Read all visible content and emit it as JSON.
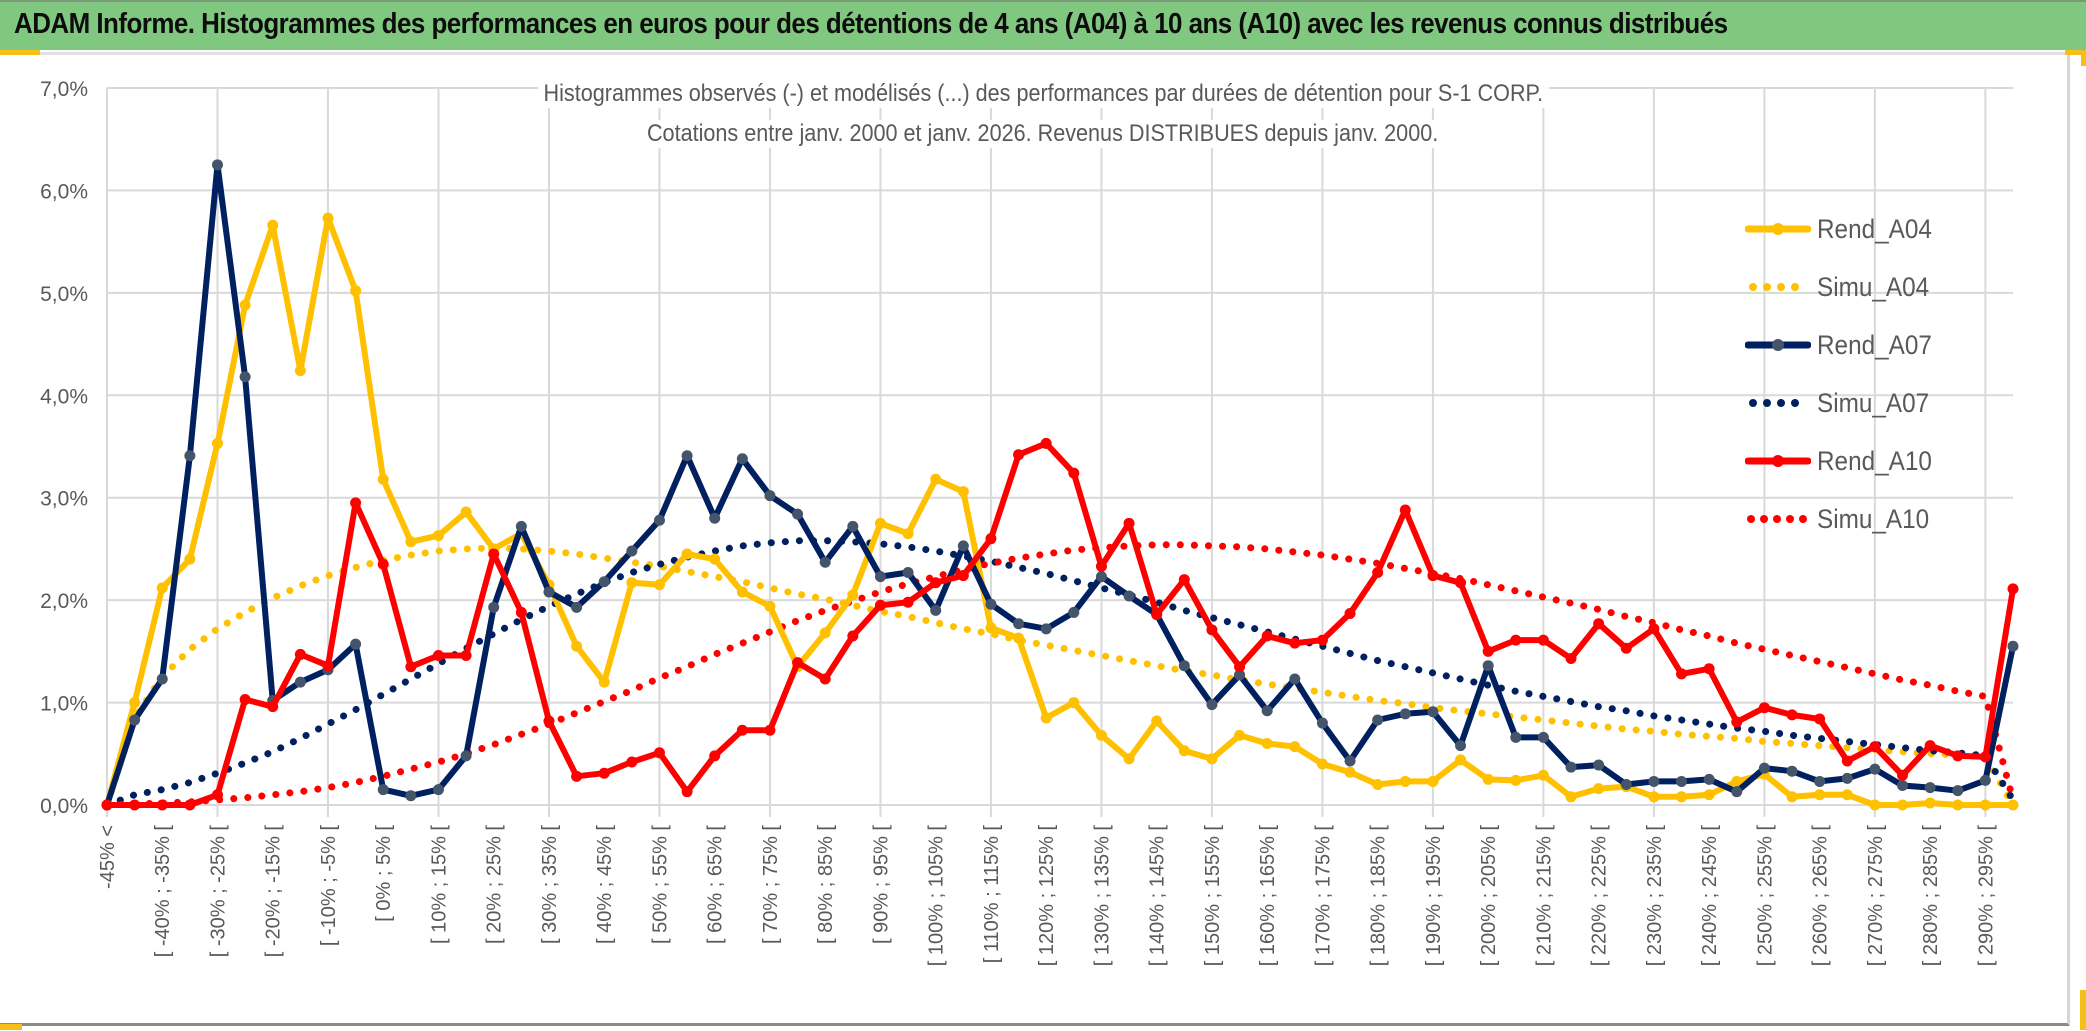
{
  "banner": {
    "title": "ADAM Informe. Histogrammes des performances en euros pour des détentions de 4 ans (A04) à 10 ans (A10) avec les revenus connus distribués"
  },
  "chart_data": {
    "type": "line",
    "title": "Histogrammes observés (-) et modélisés (...) des performances par durées de détention pour S-1 CORP.",
    "subtitle": "Cotations entre janv. 2000 et janv. 2026. Revenus DISTRIBUES depuis janv. 2000.",
    "xlabel": "",
    "ylabel": "",
    "ylim": [
      0,
      7
    ],
    "y_unit": "%",
    "y_ticks": [
      "0,0%",
      "1,0%",
      "2,0%",
      "3,0%",
      "4,0%",
      "5,0%",
      "6,0%",
      "7,0%"
    ],
    "grid": true,
    "legend_position": "right",
    "categories": [
      "-45% <",
      "[ -45% ; -40% [",
      "[ -40% ; -35% [",
      "[ -35% ; -30% [",
      "[ -30% ; -25% [",
      "[ -25% ; -20% [",
      "[ -20% ; -15% [",
      "[ -15% ; -10% [",
      "[ -10% ; -5% [",
      "[ -5% ; 0% [",
      "[ 0% ; 5% [",
      "[ 5% ; 10% [",
      "[ 10% ; 15% [",
      "[ 15% ; 20% [",
      "[ 20% ; 25% [",
      "[ 25% ; 30% [",
      "[ 30% ; 35% [",
      "[ 35% ; 40% [",
      "[ 40% ; 45% [",
      "[ 45% ; 50% [",
      "[ 50% ; 55% [",
      "[ 55% ; 60% [",
      "[ 60% ; 65% [",
      "[ 65% ; 70% [",
      "[ 70% ; 75% [",
      "[ 75% ; 80% [",
      "[ 80% ; 85% [",
      "[ 85% ; 90% [",
      "[ 90% ; 95% [",
      "[ 95% ; 100% [",
      "[ 100% ; 105% [",
      "[ 105% ; 110% [",
      "[ 110% ; 115% [",
      "[ 115% ; 120% [",
      "[ 120% ; 125% [",
      "[ 125% ; 130% [",
      "[ 130% ; 135% [",
      "[ 135% ; 140% [",
      "[ 140% ; 145% [",
      "[ 145% ; 150% [",
      "[ 150% ; 155% [",
      "[ 155% ; 160% [",
      "[ 160% ; 165% [",
      "[ 165% ; 170% [",
      "[ 170% ; 175% [",
      "[ 175% ; 180% [",
      "[ 180% ; 185% [",
      "[ 185% ; 190% [",
      "[ 190% ; 195% [",
      "[ 195% ; 200% [",
      "[ 200% ; 205% [",
      "[ 205% ; 210% [",
      "[ 210% ; 215% [",
      "[ 215% ; 220% [",
      "[ 220% ; 225% [",
      "[ 225% ; 230% [",
      "[ 230% ; 235% [",
      "[ 235% ; 240% [",
      "[ 240% ; 245% [",
      "[ 245% ; 250% [",
      "[ 250% ; 255% [",
      "[ 255% ; 260% [",
      "[ 260% ; 265% [",
      "[ 265% ; 270% [",
      "[ 270% ; 275% [",
      "[ 275% ; 280% [",
      "[ 280% ; 285% [",
      "[ 285% ; 290% [",
      "[ 290% ; 295% [",
      "[ 295% ; 300% ["
    ],
    "label_every": 2,
    "series": [
      {
        "name": "Rend_A04",
        "style": "solid",
        "color": "#ffc000",
        "marker_color": "#ffc000",
        "values": [
          0.0,
          1.0,
          2.12,
          2.4,
          3.53,
          4.88,
          5.66,
          4.24,
          5.73,
          5.02,
          3.18,
          2.57,
          2.63,
          2.86,
          2.5,
          2.65,
          2.15,
          1.55,
          1.2,
          2.17,
          2.15,
          2.45,
          2.4,
          2.08,
          1.94,
          1.35,
          1.68,
          2.05,
          2.75,
          2.65,
          3.18,
          3.06,
          1.73,
          1.63,
          0.85,
          1.0,
          0.68,
          0.45,
          0.82,
          0.53,
          0.45,
          0.68,
          0.6,
          0.57,
          0.4,
          0.32,
          0.2,
          0.23,
          0.23,
          0.44,
          0.25,
          0.24,
          0.29,
          0.08,
          0.16,
          0.18,
          0.08,
          0.08,
          0.1,
          0.23,
          0.3,
          0.08,
          0.1,
          0.1,
          0.0,
          0.0,
          0.02,
          0.0,
          0.0,
          0.0
        ]
      },
      {
        "name": "Simu_A04",
        "style": "dotted",
        "color": "#ffc000",
        "values": [
          0.0,
          0.85,
          1.25,
          1.52,
          1.72,
          1.88,
          2.02,
          2.14,
          2.24,
          2.32,
          2.39,
          2.44,
          2.48,
          2.5,
          2.51,
          2.5,
          2.48,
          2.45,
          2.41,
          2.37,
          2.33,
          2.28,
          2.23,
          2.18,
          2.12,
          2.06,
          2.01,
          1.95,
          1.89,
          1.84,
          1.78,
          1.72,
          1.67,
          1.61,
          1.56,
          1.51,
          1.46,
          1.41,
          1.36,
          1.31,
          1.27,
          1.22,
          1.18,
          1.14,
          1.1,
          1.06,
          1.02,
          0.99,
          0.95,
          0.92,
          0.89,
          0.86,
          0.83,
          0.8,
          0.77,
          0.74,
          0.72,
          0.69,
          0.67,
          0.65,
          0.62,
          0.6,
          0.58,
          0.56,
          0.54,
          0.52,
          0.5,
          0.49,
          0.47,
          0.0
        ]
      },
      {
        "name": "Rend_A07",
        "style": "solid",
        "color": "#002060",
        "marker_color": "#44546a",
        "values": [
          0.0,
          0.83,
          1.23,
          3.41,
          6.25,
          4.18,
          1.02,
          1.2,
          1.32,
          1.57,
          0.15,
          0.09,
          0.15,
          0.48,
          1.93,
          2.72,
          2.08,
          1.93,
          2.18,
          2.48,
          2.78,
          3.41,
          2.8,
          3.38,
          3.02,
          2.84,
          2.37,
          2.72,
          2.23,
          2.27,
          1.9,
          2.53,
          1.96,
          1.77,
          1.72,
          1.88,
          2.23,
          2.04,
          1.86,
          1.36,
          0.98,
          1.27,
          0.92,
          1.23,
          0.8,
          0.43,
          0.83,
          0.89,
          0.91,
          0.58,
          1.36,
          0.66,
          0.66,
          0.37,
          0.39,
          0.2,
          0.23,
          0.23,
          0.25,
          0.13,
          0.36,
          0.33,
          0.23,
          0.26,
          0.35,
          0.19,
          0.17,
          0.14,
          0.24,
          1.55
        ]
      },
      {
        "name": "Simu_A07",
        "style": "dotted",
        "color": "#002060",
        "values": [
          0.0,
          0.1,
          0.15,
          0.22,
          0.31,
          0.41,
          0.52,
          0.65,
          0.79,
          0.93,
          1.08,
          1.23,
          1.38,
          1.53,
          1.67,
          1.81,
          1.94,
          2.06,
          2.17,
          2.27,
          2.35,
          2.42,
          2.48,
          2.53,
          2.56,
          2.58,
          2.58,
          2.57,
          2.55,
          2.52,
          2.48,
          2.43,
          2.38,
          2.32,
          2.26,
          2.19,
          2.12,
          2.05,
          1.98,
          1.9,
          1.83,
          1.76,
          1.69,
          1.62,
          1.55,
          1.48,
          1.41,
          1.35,
          1.29,
          1.23,
          1.17,
          1.11,
          1.06,
          1.01,
          0.96,
          0.92,
          0.87,
          0.83,
          0.79,
          0.75,
          0.72,
          0.68,
          0.65,
          0.62,
          0.59,
          0.56,
          0.53,
          0.51,
          0.48,
          0.05
        ]
      },
      {
        "name": "Rend_A10",
        "style": "solid",
        "color": "#ff0000",
        "marker_color": "#ff0000",
        "values": [
          0.0,
          0.0,
          0.0,
          0.0,
          0.1,
          1.03,
          0.96,
          1.47,
          1.36,
          2.95,
          2.35,
          1.35,
          1.46,
          1.46,
          2.45,
          1.88,
          0.82,
          0.28,
          0.31,
          0.42,
          0.51,
          0.13,
          0.48,
          0.73,
          0.73,
          1.39,
          1.23,
          1.65,
          1.95,
          1.98,
          2.17,
          2.24,
          2.6,
          3.42,
          3.53,
          3.24,
          2.33,
          2.75,
          1.86,
          2.2,
          1.71,
          1.35,
          1.65,
          1.58,
          1.61,
          1.87,
          2.27,
          2.88,
          2.24,
          2.17,
          1.5,
          1.61,
          1.61,
          1.43,
          1.77,
          1.53,
          1.72,
          1.28,
          1.33,
          0.81,
          0.95,
          0.88,
          0.84,
          0.43,
          0.57,
          0.29,
          0.58,
          0.48,
          0.47,
          2.11
        ]
      },
      {
        "name": "Simu_A10",
        "style": "dotted",
        "color": "#ff0000",
        "values": [
          0.0,
          0.01,
          0.02,
          0.03,
          0.05,
          0.07,
          0.1,
          0.13,
          0.17,
          0.22,
          0.28,
          0.35,
          0.42,
          0.5,
          0.59,
          0.69,
          0.79,
          0.9,
          1.01,
          1.12,
          1.24,
          1.35,
          1.47,
          1.58,
          1.69,
          1.8,
          1.9,
          1.99,
          2.08,
          2.16,
          2.23,
          2.3,
          2.36,
          2.41,
          2.45,
          2.49,
          2.51,
          2.53,
          2.54,
          2.54,
          2.53,
          2.52,
          2.5,
          2.47,
          2.44,
          2.4,
          2.36,
          2.31,
          2.26,
          2.21,
          2.15,
          2.09,
          2.03,
          1.97,
          1.91,
          1.84,
          1.78,
          1.71,
          1.65,
          1.58,
          1.52,
          1.46,
          1.4,
          1.34,
          1.28,
          1.22,
          1.17,
          1.11,
          1.06,
          0.05
        ]
      }
    ]
  },
  "legend": {
    "items": [
      "Rend_A04",
      "Simu_A04",
      "Rend_A07",
      "Simu_A07",
      "Rend_A10",
      "Simu_A10"
    ]
  }
}
